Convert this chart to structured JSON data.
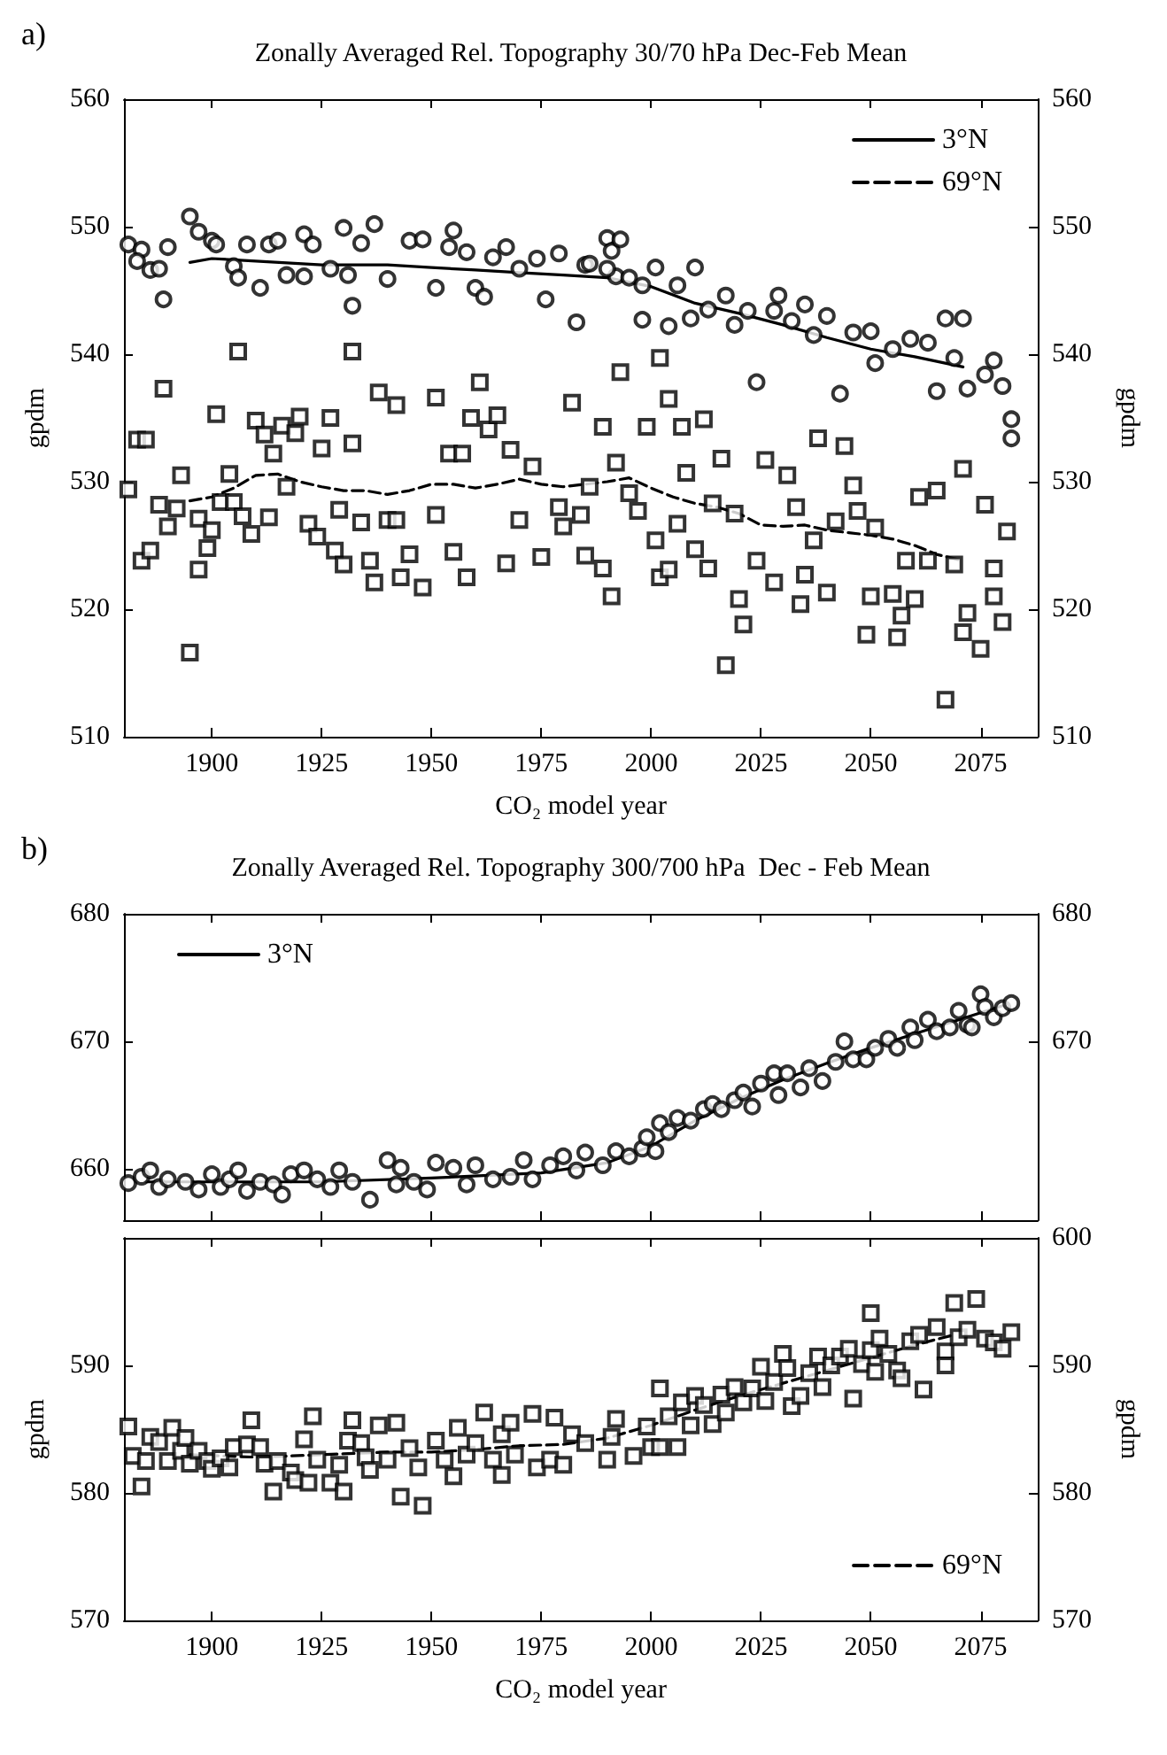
{
  "chart_data": [
    {
      "type": "scatter",
      "title": "Zonally Averaged Rel. Topography 30/70 hPa Dec-Feb Mean",
      "xlabel": "CO₂ model year",
      "ylabel": "gpdm",
      "y2label": "gpdm",
      "annotations": [
        "a)"
      ],
      "legend": "top right",
      "xlim": [
        1880,
        2088
      ],
      "xticks": [
        1900,
        1925,
        1950,
        1975,
        2000,
        2025,
        2050,
        2075
      ],
      "ylim": [
        510,
        560
      ],
      "yticks": [
        510,
        520,
        530,
        540,
        550,
        560
      ],
      "y2lim": [
        510,
        560
      ],
      "y2ticks": [
        510,
        520,
        530,
        540,
        550,
        560
      ],
      "series": [
        {
          "marker": "circle",
          "color": "#000000",
          "x": [
            1881,
            1884,
            1883,
            1886,
            1888,
            1889,
            1890,
            1895,
            1897,
            1900,
            1901,
            1905,
            1906,
            1908,
            1911,
            1913,
            1915,
            1917,
            1921,
            1921,
            1923,
            1927,
            1930,
            1931,
            1932,
            1934,
            1937,
            1940,
            1945,
            1948,
            1951,
            1954,
            1955,
            1958,
            1960,
            1962,
            1964,
            1967,
            1970,
            1974,
            1976,
            1979,
            1983,
            1985,
            1990,
            1991,
            1992,
            1986,
            1990,
            1993,
            1995,
            1998,
            1998,
            2001,
            2006,
            2004,
            2009,
            2010,
            2013,
            2017,
            2019,
            2022,
            2024,
            2028,
            2029,
            2032,
            2035,
            2037,
            2040,
            2043,
            2046,
            2050,
            2051,
            2055,
            2059,
            2063,
            2065,
            2067,
            2069,
            2071,
            2072,
            2076,
            2078,
            2080,
            2082,
            2082
          ],
          "values": [
            548.6,
            548.2,
            547.3,
            546.6,
            546.7,
            544.3,
            548.4,
            550.8,
            549.6,
            548.9,
            548.6,
            546.9,
            546.0,
            548.6,
            545.2,
            548.6,
            548.9,
            546.2,
            549.4,
            546.1,
            548.6,
            546.7,
            549.9,
            546.2,
            543.8,
            548.7,
            550.2,
            545.9,
            548.9,
            549.0,
            545.2,
            548.4,
            549.7,
            548.0,
            545.2,
            544.5,
            547.6,
            548.4,
            546.7,
            547.5,
            544.3,
            547.9,
            542.5,
            547.0,
            549.1,
            548.1,
            546.1,
            547.1,
            546.7,
            549.0,
            546.0,
            545.4,
            542.7,
            546.8,
            545.4,
            542.2,
            542.8,
            546.8,
            543.5,
            544.6,
            542.3,
            543.4,
            537.8,
            543.4,
            544.6,
            542.6,
            543.9,
            541.5,
            543.0,
            536.9,
            541.7,
            541.8,
            539.3,
            540.4,
            541.2,
            540.9,
            537.1,
            542.8,
            539.7,
            542.8,
            537.3,
            538.4,
            539.5,
            537.5,
            534.9,
            533.4
          ]
        },
        {
          "marker": "square",
          "color": "#000000",
          "x": [
            1881,
            1883,
            1885,
            1884,
            1886,
            1888,
            1889,
            1890,
            1892,
            1893,
            1895,
            1897,
            1897,
            1899,
            1900,
            1901,
            1902,
            1904,
            1905,
            1906,
            1907,
            1909,
            1910,
            1912,
            1913,
            1914,
            1916,
            1917,
            1919,
            1920,
            1922,
            1924,
            1925,
            1927,
            1928,
            1929,
            1930,
            1932,
            1932,
            1934,
            1936,
            1937,
            1938,
            1940,
            1942,
            1942,
            1943,
            1945,
            1948,
            1951,
            1951,
            1954,
            1955,
            1957,
            1958,
            1959,
            1961,
            1963,
            1965,
            1967,
            1968,
            1970,
            1973,
            1975,
            1979,
            1980,
            1982,
            1985,
            1984,
            1986,
            1989,
            1989,
            1991,
            1992,
            1993,
            1995,
            1997,
            1999,
            2001,
            2002,
            2002,
            2004,
            2004,
            2006,
            2007,
            2008,
            2010,
            2012,
            2013,
            2014,
            2016,
            2017,
            2019,
            2020,
            2021,
            2024,
            2026,
            2028,
            2031,
            2033,
            2034,
            2035,
            2037,
            2038,
            2040,
            2042,
            2044,
            2046,
            2047,
            2049,
            2050,
            2051,
            2055,
            2056,
            2057,
            2058,
            2060,
            2061,
            2063,
            2065,
            2067,
            2069,
            2071,
            2071,
            2072,
            2075,
            2076,
            2078,
            2078,
            2080,
            2081
          ],
          "values": [
            529.4,
            533.3,
            533.3,
            523.8,
            524.6,
            528.2,
            537.3,
            526.5,
            527.9,
            530.5,
            516.6,
            523.1,
            527.1,
            524.8,
            526.2,
            535.3,
            528.4,
            530.6,
            528.4,
            540.2,
            527.3,
            525.9,
            534.8,
            533.7,
            527.2,
            532.2,
            534.4,
            529.6,
            533.8,
            535.1,
            526.7,
            525.7,
            532.6,
            535.0,
            524.6,
            527.8,
            523.5,
            533.0,
            540.2,
            526.8,
            523.8,
            522.1,
            537.0,
            527.0,
            527.0,
            536.0,
            522.5,
            524.3,
            521.7,
            536.6,
            527.4,
            532.2,
            524.5,
            532.2,
            522.5,
            535.0,
            537.8,
            534.1,
            535.2,
            523.6,
            532.5,
            527.0,
            531.2,
            524.1,
            528.0,
            526.5,
            536.2,
            524.2,
            527.4,
            529.6,
            534.3,
            523.2,
            521.0,
            531.5,
            538.6,
            529.1,
            527.7,
            534.3,
            525.4,
            539.7,
            522.5,
            536.5,
            523.1,
            526.7,
            534.3,
            530.7,
            524.7,
            534.9,
            523.2,
            528.3,
            531.8,
            515.6,
            527.5,
            520.8,
            518.8,
            523.8,
            531.7,
            522.1,
            530.5,
            528.0,
            520.4,
            522.7,
            525.4,
            533.4,
            521.3,
            526.9,
            532.8,
            529.7,
            527.7,
            518.0,
            521.0,
            526.4,
            521.2,
            517.8,
            519.5,
            523.8,
            520.8,
            528.8,
            523.8,
            529.3,
            512.9,
            523.5,
            531.0,
            518.2,
            519.7,
            516.9,
            528.2,
            523.2,
            521.0,
            519.0,
            526.1
          ]
        },
        {
          "type": "line",
          "name": "3°N",
          "marker": "none",
          "line_style": "solid",
          "color": "#000000",
          "x": [
            1895,
            1900,
            1910,
            1925,
            1940,
            1950,
            1960,
            1970,
            1980,
            1990,
            2000,
            2010,
            2020,
            2030,
            2040,
            2050,
            2060,
            2071
          ],
          "values": [
            547.2,
            547.5,
            547.3,
            547.0,
            547.0,
            546.8,
            546.6,
            546.4,
            546.2,
            546.0,
            545.3,
            544.0,
            543.2,
            542.3,
            541.3,
            540.4,
            539.8,
            539.0
          ]
        },
        {
          "type": "line",
          "name": "69°N",
          "marker": "none",
          "line_style": "dashed",
          "color": "#000000",
          "x": [
            1895,
            1900,
            1905,
            1910,
            1915,
            1920,
            1925,
            1930,
            1935,
            1940,
            1945,
            1950,
            1955,
            1960,
            1965,
            1970,
            1975,
            1980,
            1985,
            1990,
            1995,
            2000,
            2005,
            2010,
            2015,
            2020,
            2025,
            2030,
            2035,
            2040,
            2045,
            2050,
            2055,
            2060,
            2065,
            2071
          ],
          "values": [
            528.5,
            528.8,
            529.5,
            530.5,
            530.6,
            530.0,
            529.6,
            529.3,
            529.3,
            529.0,
            529.3,
            529.8,
            529.8,
            529.5,
            529.8,
            530.2,
            529.8,
            529.6,
            529.8,
            530.0,
            530.3,
            529.5,
            528.8,
            528.3,
            528.0,
            527.5,
            526.6,
            526.5,
            526.6,
            526.2,
            526.0,
            525.8,
            525.5,
            525.0,
            524.3,
            523.8
          ]
        }
      ]
    },
    {
      "type": "scatter",
      "title": "Zonally Averaged Rel. Topography 300/700 hPa  Dec - Feb Mean",
      "annotations": [
        "b)"
      ],
      "legend": "top left",
      "tick_labels": "y",
      "xlim": [
        1880,
        2088
      ],
      "xticks": [
        1900,
        1925,
        1950,
        1975,
        2000,
        2025,
        2050,
        2075
      ],
      "ylim": [
        656,
        680
      ],
      "yticks": [
        660,
        670,
        680
      ],
      "y2lim": [
        656,
        680
      ],
      "y2ticks": [
        670,
        680
      ],
      "series": [
        {
          "marker": "circle",
          "color": "#000000",
          "x": [
            1881,
            1884,
            1886,
            1888,
            1890,
            1894,
            1897,
            1900,
            1902,
            1904,
            1906,
            1908,
            1911,
            1914,
            1916,
            1918,
            1921,
            1924,
            1927,
            1929,
            1932,
            1936,
            1940,
            1942,
            1943,
            1946,
            1949,
            1951,
            1955,
            1958,
            1960,
            1964,
            1968,
            1971,
            1973,
            1977,
            1980,
            1983,
            1985,
            1989,
            1992,
            1995,
            1998,
            1999,
            2001,
            2002,
            2004,
            2006,
            2009,
            2012,
            2014,
            2016,
            2019,
            2021,
            2023,
            2025,
            2028,
            2029,
            2031,
            2034,
            2036,
            2039,
            2042,
            2044,
            2046,
            2049,
            2051,
            2054,
            2056,
            2059,
            2060,
            2063,
            2065,
            2068,
            2070,
            2072,
            2073,
            2075,
            2076,
            2078,
            2080,
            2082
          ],
          "values": [
            658.9,
            659.4,
            659.9,
            658.6,
            659.2,
            659.0,
            658.4,
            659.6,
            658.6,
            659.2,
            659.9,
            658.3,
            659.0,
            658.8,
            658.0,
            659.6,
            659.9,
            659.2,
            658.6,
            659.9,
            659.0,
            657.6,
            660.7,
            658.8,
            660.1,
            659.0,
            658.4,
            660.5,
            660.1,
            658.8,
            660.3,
            659.2,
            659.4,
            660.7,
            659.2,
            660.3,
            661.0,
            659.9,
            661.3,
            660.3,
            661.4,
            661.0,
            661.6,
            662.5,
            661.4,
            663.6,
            662.9,
            664.0,
            663.8,
            664.7,
            665.1,
            664.7,
            665.4,
            666.0,
            664.9,
            666.7,
            667.5,
            665.8,
            667.5,
            666.4,
            667.9,
            666.9,
            668.4,
            670.0,
            668.6,
            668.6,
            669.5,
            670.2,
            669.5,
            671.1,
            670.1,
            671.7,
            670.8,
            671.1,
            672.4,
            671.3,
            671.1,
            673.7,
            672.7,
            671.9,
            672.6,
            673.0
          ]
        },
        {
          "type": "line",
          "name": "3°N",
          "marker": "none",
          "line_style": "solid",
          "color": "#000000",
          "x": [
            1885,
            1900,
            1925,
            1950,
            1975,
            1990,
            2000,
            2010,
            2020,
            2030,
            2040,
            2050,
            2060,
            2070,
            2080
          ],
          "values": [
            659.0,
            659.0,
            659.0,
            659.3,
            659.7,
            660.5,
            661.8,
            663.8,
            665.5,
            667.0,
            668.3,
            669.5,
            670.6,
            671.7,
            672.8
          ]
        }
      ]
    },
    {
      "type": "scatter",
      "xlabel": "CO₂ model year",
      "ylabel": "gpdm",
      "y2label": "gpdm",
      "legend": "bottom right",
      "xlim": [
        1880,
        2088
      ],
      "xticks": [
        1900,
        1925,
        1950,
        1975,
        2000,
        2025,
        2050,
        2075
      ],
      "ylim": [
        570,
        600
      ],
      "yticks": [
        570,
        580,
        590
      ],
      "y2lim": [
        570,
        600
      ],
      "y2ticks": [
        570,
        580,
        590,
        600
      ],
      "series": [
        {
          "marker": "square",
          "color": "#000000",
          "x": [
            1881,
            1882,
            1884,
            1885,
            1886,
            1888,
            1890,
            1891,
            1893,
            1894,
            1895,
            1897,
            1899,
            1900,
            1902,
            1904,
            1905,
            1908,
            1909,
            1911,
            1912,
            1914,
            1915,
            1918,
            1919,
            1921,
            1922,
            1923,
            1924,
            1927,
            1929,
            1930,
            1931,
            1932,
            1934,
            1935,
            1936,
            1938,
            1940,
            1942,
            1943,
            1945,
            1947,
            1948,
            1951,
            1953,
            1955,
            1956,
            1958,
            1960,
            1962,
            1964,
            1966,
            1966,
            1968,
            1969,
            1973,
            1974,
            1978,
            1977,
            1980,
            1982,
            1985,
            1990,
            1992,
            1991,
            1996,
            1999,
            2000,
            2002,
            2002,
            2004,
            2006,
            2007,
            2009,
            2010,
            2012,
            2014,
            2016,
            2017,
            2019,
            2021,
            2023,
            2025,
            2026,
            2028,
            2030,
            2031,
            2032,
            2034,
            2036,
            2038,
            2039,
            2041,
            2043,
            2045,
            2046,
            2048,
            2050,
            2050,
            2051,
            2052,
            2054,
            2056,
            2057,
            2059,
            2061,
            2062,
            2065,
            2067,
            2067,
            2069,
            2070,
            2072,
            2074,
            2076,
            2078,
            2080,
            2082
          ],
          "values": [
            585.2,
            582.9,
            580.5,
            582.5,
            584.4,
            584.0,
            582.5,
            585.1,
            583.3,
            584.3,
            582.3,
            583.3,
            582.5,
            581.9,
            582.7,
            582.0,
            583.6,
            583.8,
            585.7,
            583.6,
            582.3,
            580.1,
            582.5,
            581.6,
            581.0,
            584.2,
            580.8,
            586.0,
            582.6,
            580.8,
            582.2,
            580.1,
            584.1,
            585.7,
            583.9,
            582.8,
            581.8,
            585.3,
            582.6,
            585.5,
            579.7,
            583.5,
            582.0,
            579.0,
            584.1,
            582.6,
            581.3,
            585.1,
            583.0,
            583.9,
            586.3,
            582.6,
            584.6,
            581.4,
            585.5,
            583.0,
            586.2,
            582.0,
            585.9,
            582.6,
            582.2,
            584.6,
            583.9,
            582.6,
            585.8,
            584.4,
            582.9,
            585.2,
            583.6,
            588.2,
            583.6,
            586.0,
            583.6,
            587.1,
            585.3,
            587.6,
            586.9,
            585.4,
            587.7,
            586.3,
            588.3,
            587.1,
            588.2,
            589.9,
            587.2,
            588.7,
            590.9,
            589.8,
            586.8,
            587.6,
            589.4,
            590.7,
            588.3,
            590.0,
            590.7,
            591.3,
            587.4,
            590.1,
            591.2,
            594.1,
            589.5,
            592.1,
            590.9,
            589.6,
            589.0,
            591.9,
            592.4,
            588.1,
            593.0,
            591.1,
            590.0,
            594.9,
            592.2,
            592.8,
            595.2,
            592.1,
            591.8,
            591.3,
            592.6
          ]
        },
        {
          "type": "line",
          "name": "69°N",
          "marker": "none",
          "line_style": "dashed",
          "color": "#000000",
          "x": [
            1895,
            1910,
            1925,
            1940,
            1950,
            1960,
            1970,
            1980,
            1990,
            2000,
            2010,
            2020,
            2030,
            2040,
            2050,
            2060,
            2069
          ],
          "values": [
            583.0,
            582.8,
            583.0,
            583.2,
            583.2,
            583.4,
            583.7,
            583.8,
            584.3,
            585.3,
            586.5,
            587.6,
            588.6,
            589.6,
            590.6,
            591.6,
            592.4
          ]
        }
      ]
    }
  ]
}
